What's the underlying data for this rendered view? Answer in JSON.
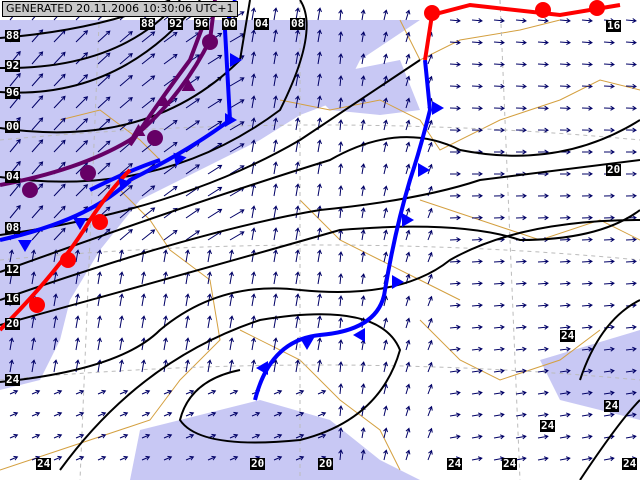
{
  "header": {
    "generated": "GENERATED 20.11.2006 10:30:06 UTC+1"
  },
  "isobar_labels": [
    "88",
    "92",
    "96",
    "00",
    "04",
    "08",
    "12",
    "16",
    "20",
    "24",
    "24",
    "88",
    "92",
    "96",
    "00",
    "04",
    "08",
    "16",
    "20",
    "24",
    "24",
    "24",
    "20",
    "20",
    "24",
    "24",
    "24"
  ],
  "colors": {
    "precip_shading": "#c8c8f4",
    "coast": "#d4a040",
    "isobar": "#000000",
    "cold_front": "#0000ff",
    "warm_front": "#ff0000",
    "occluded_front": "#660066",
    "wind_arrow": "#000066"
  },
  "legend_icons": [
    "cold-front-triangle",
    "warm-front-semicircle",
    "occluded-front",
    "wind-arrow"
  ]
}
